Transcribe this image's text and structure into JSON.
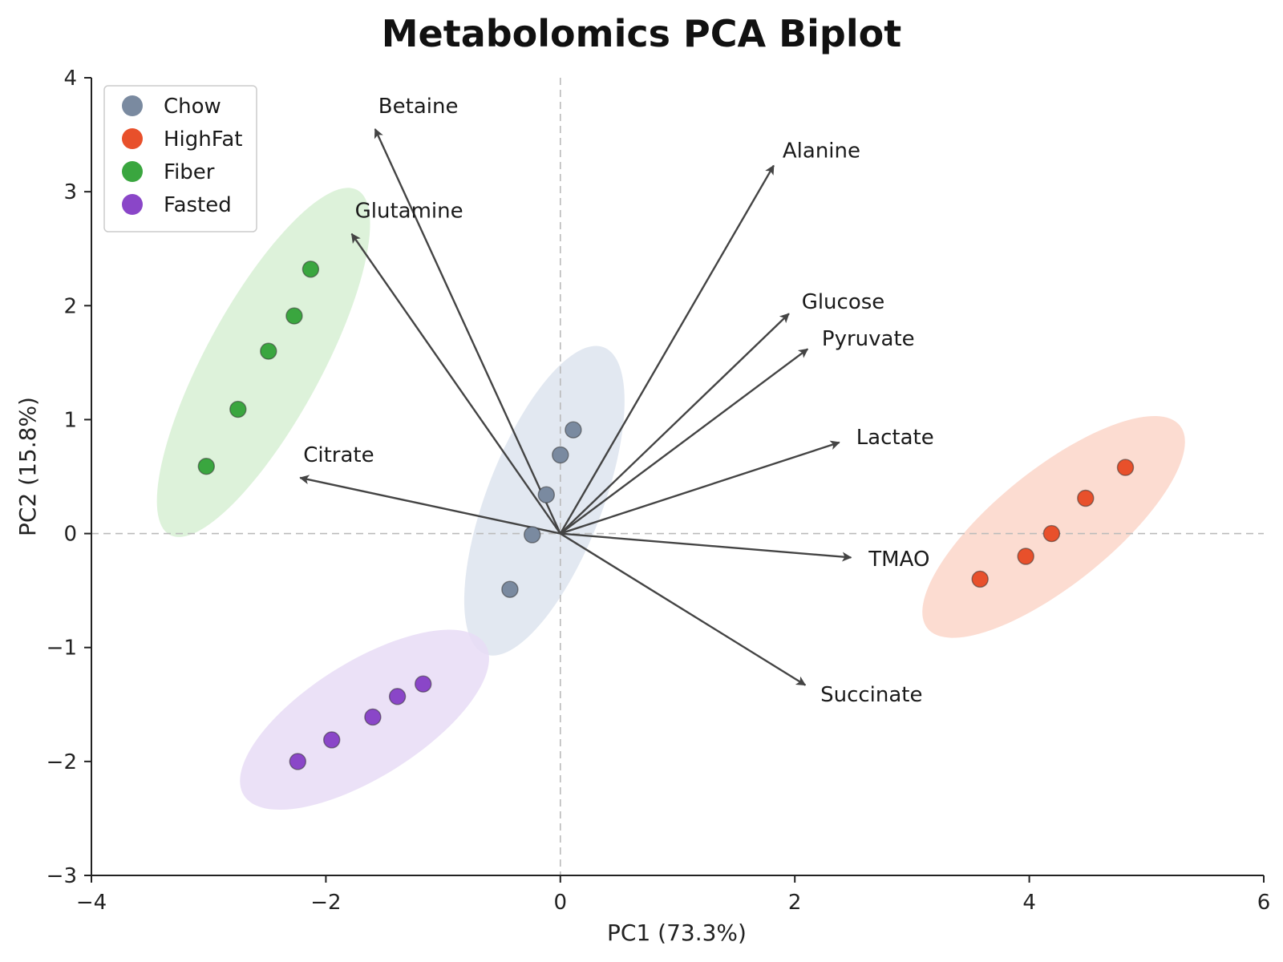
{
  "chart_data": {
    "type": "scatter",
    "title": "Metabolomics PCA Biplot",
    "xlabel": "PC1 (73.3%)",
    "ylabel": "PC2 (15.8%)",
    "xlim": [
      -4,
      6
    ],
    "ylim": [
      -3,
      4
    ],
    "xticks": [
      -4,
      -2,
      0,
      2,
      4,
      6
    ],
    "yticks": [
      -3,
      -2,
      -1,
      0,
      1,
      2,
      3,
      4
    ],
    "zero_lines": "dashed",
    "grid": false,
    "legend_position": "top-left",
    "series": [
      {
        "name": "Chow",
        "color": "#7a8aa0",
        "ellipse_color": "#dde4ee",
        "points": [
          [
            0.11,
            0.91
          ],
          [
            0.0,
            0.69
          ],
          [
            -0.12,
            0.34
          ],
          [
            -0.24,
            -0.01
          ],
          [
            -0.43,
            -0.49
          ]
        ]
      },
      {
        "name": "HighFat",
        "color": "#e8502b",
        "ellipse_color": "#fbd6c9",
        "points": [
          [
            3.58,
            -0.4
          ],
          [
            3.97,
            -0.2
          ],
          [
            4.19,
            0.0
          ],
          [
            4.48,
            0.31
          ],
          [
            4.82,
            0.58
          ]
        ]
      },
      {
        "name": "Fiber",
        "color": "#3aa63f",
        "ellipse_color": "#d7f0d4",
        "points": [
          [
            -3.02,
            0.59
          ],
          [
            -2.75,
            1.09
          ],
          [
            -2.49,
            1.6
          ],
          [
            -2.27,
            1.91
          ],
          [
            -2.13,
            2.32
          ]
        ]
      },
      {
        "name": "Fasted",
        "color": "#8a46c8",
        "ellipse_color": "#e7dcf6",
        "points": [
          [
            -2.24,
            -2.0
          ],
          [
            -1.95,
            -1.81
          ],
          [
            -1.6,
            -1.61
          ],
          [
            -1.39,
            -1.43
          ],
          [
            -1.17,
            -1.32
          ]
        ]
      }
    ],
    "loadings": [
      {
        "name": "Betaine",
        "x": -1.58,
        "y": 3.55
      },
      {
        "name": "Alanine",
        "x": 1.82,
        "y": 3.23
      },
      {
        "name": "Glutamine",
        "x": -1.78,
        "y": 2.63
      },
      {
        "name": "Glucose",
        "x": 1.95,
        "y": 1.93
      },
      {
        "name": "Pyruvate",
        "x": 2.11,
        "y": 1.62
      },
      {
        "name": "Lactate",
        "x": 2.38,
        "y": 0.8
      },
      {
        "name": "Citrate",
        "x": -2.22,
        "y": 0.49
      },
      {
        "name": "TMAO",
        "x": 2.48,
        "y": -0.21
      },
      {
        "name": "Succinate",
        "x": 2.09,
        "y": -1.33
      }
    ]
  }
}
